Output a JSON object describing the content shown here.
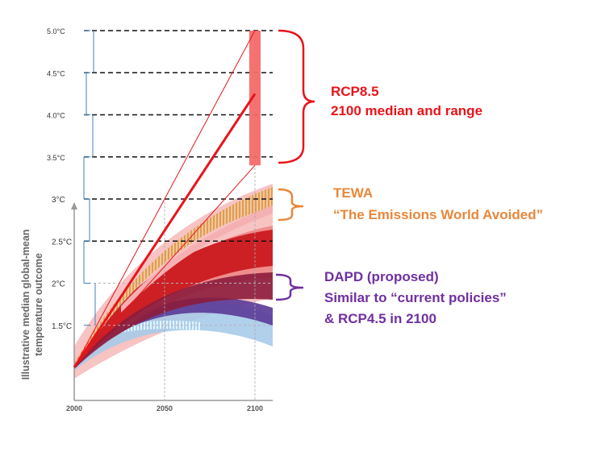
{
  "colors": {
    "rcp85": "#e8141a",
    "tewa": "#e8873a",
    "dapd": "#7030a0",
    "guide_blue": "#3f7fbf"
  },
  "chart_data": {
    "type": "line",
    "title": "",
    "xlabel": "",
    "ylabel": "Illustrative median global-mean temperature outcome",
    "x_ticks": [
      "2000",
      "2050",
      "2100"
    ],
    "x_range": [
      2000,
      2110
    ],
    "y_ticks": [
      {
        "value": 1.5,
        "label": "1.5°C"
      },
      {
        "value": 2.0,
        "label": "2°C"
      },
      {
        "value": 2.5,
        "label": "2.5°C"
      },
      {
        "value": 3.0,
        "label": "3°C"
      },
      {
        "value": 3.5,
        "label": "3.5°C"
      },
      {
        "value": 4.0,
        "label": "4.0°C"
      },
      {
        "value": 4.5,
        "label": "4.5°C"
      },
      {
        "value": 5.0,
        "label": "5.0°C"
      }
    ],
    "y_range": [
      0.8,
      5.0
    ],
    "series": [
      {
        "name": "RCP8.5 median",
        "x": [
          2000,
          2100
        ],
        "y": [
          1.0,
          4.25
        ]
      },
      {
        "name": "RCP8.5 range upper",
        "x": [
          2000,
          2100
        ],
        "y": [
          1.0,
          5.0
        ]
      },
      {
        "name": "RCP8.5 range lower",
        "x": [
          2000,
          2100
        ],
        "y": [
          1.0,
          3.4
        ]
      }
    ],
    "range_bar": {
      "name": "RCP8.5 2100 range",
      "x": 2100,
      "low": 3.4,
      "high": 5.0
    }
  },
  "annotations": {
    "rcp85": {
      "line1": "RCP8.5",
      "line2": "2100 median and range"
    },
    "tewa": {
      "line1": "TEWA",
      "line2": "“The Emissions World Avoided”"
    },
    "dapd": {
      "line1": "DAPD (proposed)",
      "line2": "Similar to “current policies”",
      "line3": "& RCP4.5 in 2100"
    }
  }
}
